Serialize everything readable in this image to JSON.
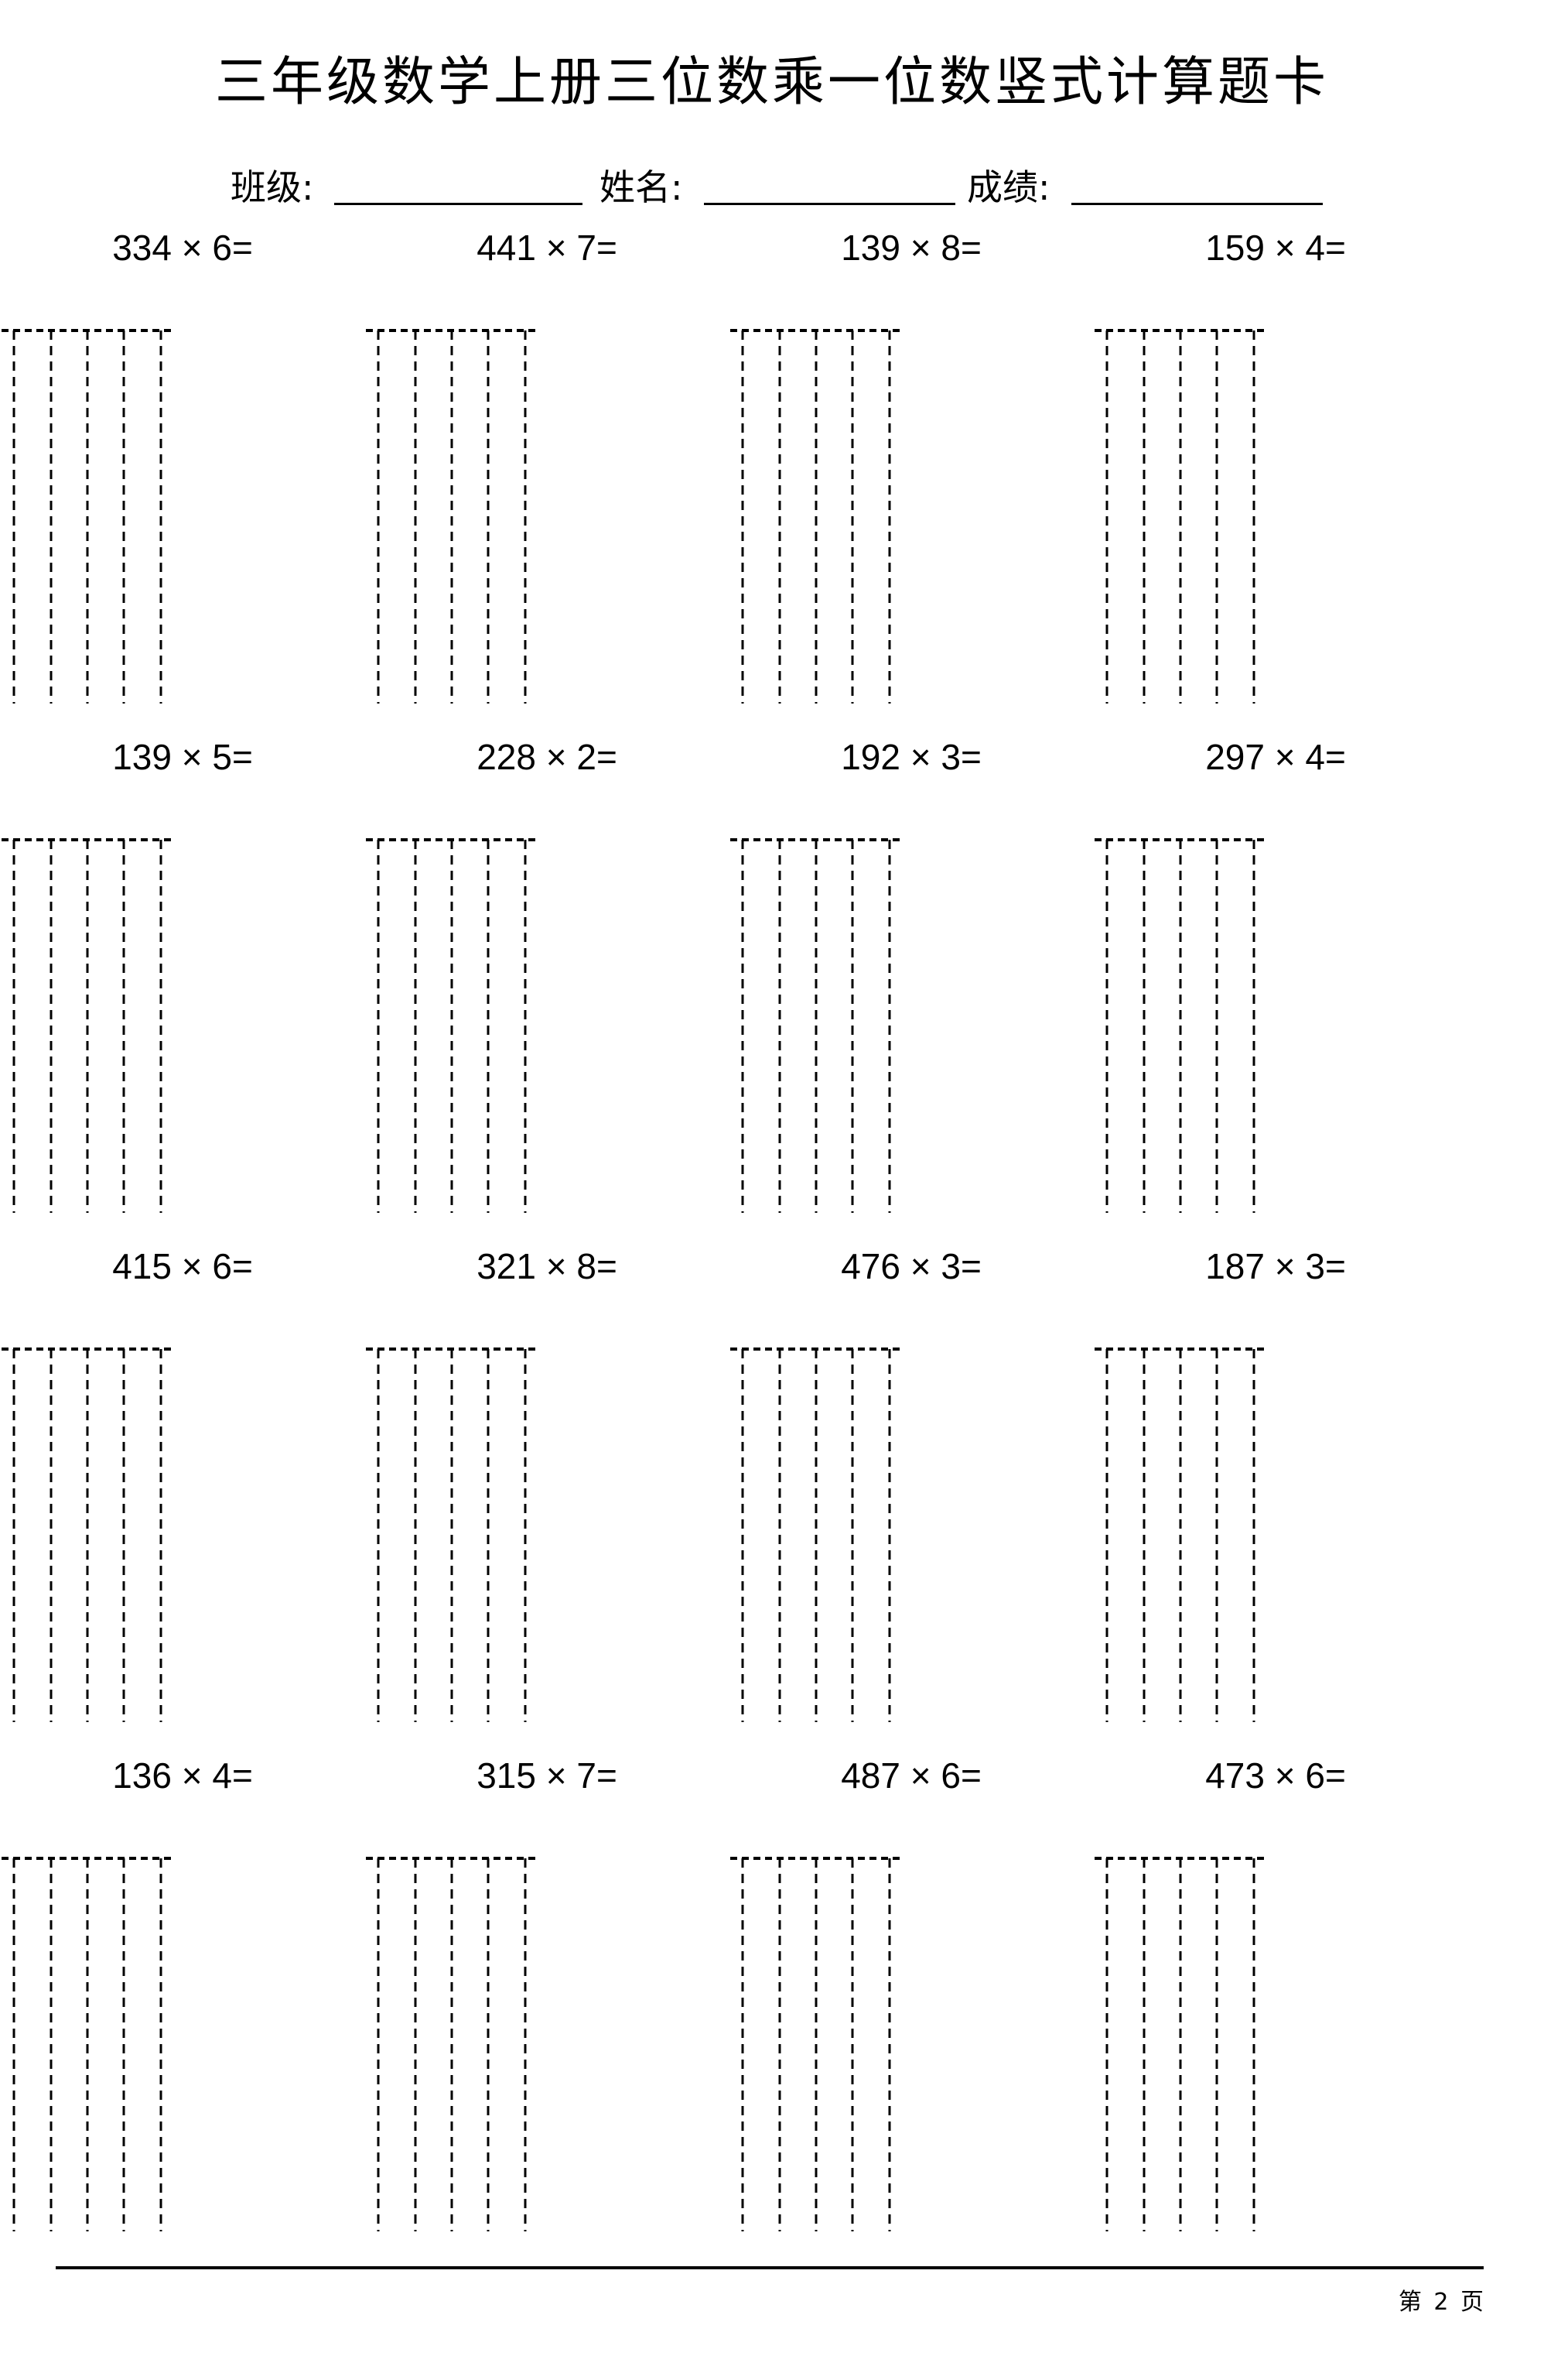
{
  "title": "三年级数学上册三位数乘一位数竖式计算题卡",
  "header": {
    "class_label": "班级:",
    "name_label": "姓名:",
    "score_label": "成绩:"
  },
  "problems": [
    "334 × 6=",
    "441 × 7=",
    "139 × 8=",
    "159 × 4=",
    "139 × 5=",
    "228 × 2=",
    "192 × 3=",
    "297 × 4=",
    "415 × 6=",
    "321 × 8=",
    "476 × 3=",
    "187 × 3=",
    "136 × 4=",
    "315 × 7=",
    "487 × 6=",
    "473 × 6="
  ],
  "footer": {
    "page_label": "第 2 页"
  }
}
